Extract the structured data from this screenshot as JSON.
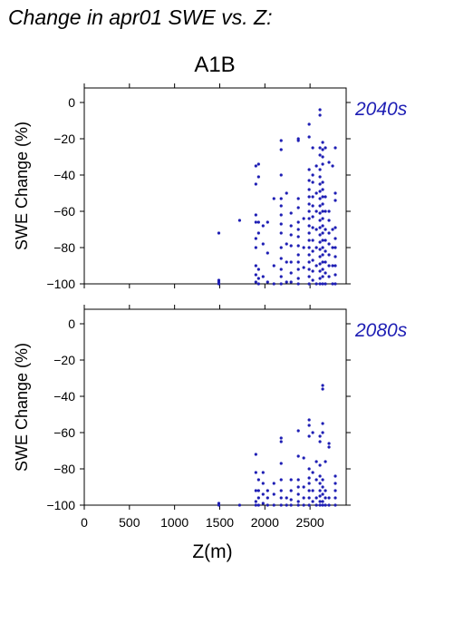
{
  "figure": {
    "title": "Change in apr01 SWE vs. Z:",
    "scenario": "A1B"
  },
  "colors": {
    "points": "#1e1eb4",
    "label": "#1e1eb4",
    "axis": "#000000"
  },
  "chart_data": [
    {
      "type": "scatter",
      "label": "2040s",
      "ylabel": "SWE Change (%)",
      "xlabel": "",
      "xlim": [
        0,
        2900
      ],
      "ylim": [
        -100,
        8
      ],
      "x_ticks": [
        0,
        500,
        1000,
        1500,
        2000,
        2500
      ],
      "y_ticks": [
        0,
        -20,
        -40,
        -60,
        -80,
        -100
      ],
      "x_tick_labels_visible": false,
      "points": [
        [
          1490,
          -72
        ],
        [
          1490,
          -98
        ],
        [
          1490,
          -99
        ],
        [
          1490,
          -100
        ],
        [
          1720,
          -65
        ],
        [
          1900,
          -35
        ],
        [
          1900,
          -45
        ],
        [
          1900,
          -62
        ],
        [
          1900,
          -66
        ],
        [
          1900,
          -75
        ],
        [
          1900,
          -80
        ],
        [
          1900,
          -90
        ],
        [
          1900,
          -95
        ],
        [
          1900,
          -99
        ],
        [
          1930,
          -34
        ],
        [
          1930,
          -41
        ],
        [
          1930,
          -66
        ],
        [
          1930,
          -72
        ],
        [
          1930,
          -92
        ],
        [
          1930,
          -97
        ],
        [
          1930,
          -100
        ],
        [
          1980,
          -68
        ],
        [
          1980,
          -78
        ],
        [
          1980,
          -96
        ],
        [
          2030,
          -66
        ],
        [
          2030,
          -83
        ],
        [
          2030,
          -99
        ],
        [
          2100,
          -53
        ],
        [
          2100,
          -90
        ],
        [
          2100,
          -100
        ],
        [
          2180,
          -21
        ],
        [
          2180,
          -26
        ],
        [
          2180,
          -40
        ],
        [
          2180,
          -53
        ],
        [
          2180,
          -57
        ],
        [
          2180,
          -62
        ],
        [
          2180,
          -67
        ],
        [
          2180,
          -72
        ],
        [
          2180,
          -80
        ],
        [
          2180,
          -86
        ],
        [
          2180,
          -92
        ],
        [
          2180,
          -96
        ],
        [
          2180,
          -100
        ],
        [
          2240,
          -50
        ],
        [
          2240,
          -78
        ],
        [
          2240,
          -88
        ],
        [
          2240,
          -99
        ],
        [
          2290,
          -61
        ],
        [
          2290,
          -68
        ],
        [
          2290,
          -73
        ],
        [
          2290,
          -79
        ],
        [
          2290,
          -88
        ],
        [
          2290,
          -94
        ],
        [
          2290,
          -99
        ],
        [
          2370,
          -20
        ],
        [
          2370,
          -21
        ],
        [
          2370,
          -53
        ],
        [
          2370,
          -58
        ],
        [
          2370,
          -66
        ],
        [
          2370,
          -70
        ],
        [
          2370,
          -74
        ],
        [
          2370,
          -79
        ],
        [
          2370,
          -84
        ],
        [
          2370,
          -88
        ],
        [
          2370,
          -92
        ],
        [
          2370,
          -97
        ],
        [
          2370,
          -100
        ],
        [
          2430,
          -64
        ],
        [
          2430,
          -80
        ],
        [
          2430,
          -91
        ],
        [
          2490,
          -12
        ],
        [
          2490,
          -19
        ],
        [
          2490,
          -37
        ],
        [
          2490,
          -43
        ],
        [
          2490,
          -48
        ],
        [
          2490,
          -52
        ],
        [
          2490,
          -56
        ],
        [
          2490,
          -60
        ],
        [
          2490,
          -64
        ],
        [
          2490,
          -68
        ],
        [
          2490,
          -72
        ],
        [
          2490,
          -76
        ],
        [
          2490,
          -80
        ],
        [
          2490,
          -84
        ],
        [
          2490,
          -88
        ],
        [
          2490,
          -92
        ],
        [
          2490,
          -96
        ],
        [
          2490,
          -100
        ],
        [
          2530,
          -25
        ],
        [
          2530,
          -40
        ],
        [
          2530,
          -44
        ],
        [
          2530,
          -52
        ],
        [
          2530,
          -57
        ],
        [
          2530,
          -63
        ],
        [
          2530,
          -69
        ],
        [
          2530,
          -76
        ],
        [
          2530,
          -82
        ],
        [
          2530,
          -87
        ],
        [
          2530,
          -93
        ],
        [
          2530,
          -98
        ],
        [
          2570,
          -35
        ],
        [
          2570,
          -50
        ],
        [
          2570,
          -60
        ],
        [
          2570,
          -70
        ],
        [
          2570,
          -80
        ],
        [
          2570,
          -90
        ],
        [
          2570,
          -100
        ],
        [
          2610,
          -4
        ],
        [
          2610,
          -7
        ],
        [
          2610,
          -25
        ],
        [
          2610,
          -29
        ],
        [
          2610,
          -37
        ],
        [
          2610,
          -41
        ],
        [
          2610,
          -45
        ],
        [
          2610,
          -49
        ],
        [
          2610,
          -53
        ],
        [
          2610,
          -57
        ],
        [
          2610,
          -61
        ],
        [
          2610,
          -65
        ],
        [
          2610,
          -69
        ],
        [
          2610,
          -73
        ],
        [
          2610,
          -77
        ],
        [
          2610,
          -81
        ],
        [
          2610,
          -85
        ],
        [
          2610,
          -89
        ],
        [
          2610,
          -93
        ],
        [
          2610,
          -97
        ],
        [
          2610,
          -100
        ],
        [
          2640,
          -22
        ],
        [
          2640,
          -26
        ],
        [
          2640,
          -30
        ],
        [
          2640,
          -34
        ],
        [
          2640,
          -44
        ],
        [
          2640,
          -48
        ],
        [
          2640,
          -52
        ],
        [
          2640,
          -56
        ],
        [
          2640,
          -60
        ],
        [
          2640,
          -64
        ],
        [
          2640,
          -68
        ],
        [
          2640,
          -72
        ],
        [
          2640,
          -76
        ],
        [
          2640,
          -80
        ],
        [
          2640,
          -84
        ],
        [
          2640,
          -88
        ],
        [
          2640,
          -92
        ],
        [
          2640,
          -96
        ],
        [
          2640,
          -100
        ],
        [
          2670,
          -25
        ],
        [
          2670,
          -52
        ],
        [
          2670,
          -60
        ],
        [
          2670,
          -70
        ],
        [
          2670,
          -76
        ],
        [
          2670,
          -82
        ],
        [
          2670,
          -88
        ],
        [
          2670,
          -94
        ],
        [
          2670,
          -100
        ],
        [
          2710,
          -33
        ],
        [
          2710,
          -60
        ],
        [
          2710,
          -65
        ],
        [
          2710,
          -72
        ],
        [
          2710,
          -78
        ],
        [
          2710,
          -84
        ],
        [
          2710,
          -90
        ],
        [
          2710,
          -96
        ],
        [
          2750,
          -35
        ],
        [
          2750,
          -70
        ],
        [
          2750,
          -80
        ],
        [
          2750,
          -90
        ],
        [
          2750,
          -100
        ],
        [
          2780,
          -25
        ],
        [
          2780,
          -50
        ],
        [
          2780,
          -54
        ],
        [
          2780,
          -69
        ],
        [
          2780,
          -75
        ],
        [
          2780,
          -80
        ],
        [
          2780,
          -85
        ],
        [
          2780,
          -90
        ],
        [
          2780,
          -95
        ],
        [
          2780,
          -100
        ]
      ]
    },
    {
      "type": "scatter",
      "label": "2080s",
      "ylabel": "SWE Change (%)",
      "xlabel": "Z(m)",
      "xlim": [
        0,
        2900
      ],
      "ylim": [
        -100,
        8
      ],
      "x_ticks": [
        0,
        500,
        1000,
        1500,
        2000,
        2500
      ],
      "y_ticks": [
        0,
        -20,
        -40,
        -60,
        -80,
        -100
      ],
      "x_tick_labels_visible": true,
      "points": [
        [
          1490,
          -99
        ],
        [
          1490,
          -100
        ],
        [
          1720,
          -100
        ],
        [
          1900,
          -72
        ],
        [
          1900,
          -82
        ],
        [
          1900,
          -92
        ],
        [
          1900,
          -98
        ],
        [
          1900,
          -100
        ],
        [
          1930,
          -86
        ],
        [
          1930,
          -92
        ],
        [
          1930,
          -96
        ],
        [
          1930,
          -100
        ],
        [
          1980,
          -82
        ],
        [
          1980,
          -88
        ],
        [
          1980,
          -94
        ],
        [
          1980,
          -99
        ],
        [
          2030,
          -92
        ],
        [
          2030,
          -96
        ],
        [
          2030,
          -100
        ],
        [
          2100,
          -88
        ],
        [
          2100,
          -94
        ],
        [
          2100,
          -100
        ],
        [
          2180,
          -63
        ],
        [
          2180,
          -65
        ],
        [
          2180,
          -77
        ],
        [
          2180,
          -86
        ],
        [
          2180,
          -92
        ],
        [
          2180,
          -96
        ],
        [
          2180,
          -100
        ],
        [
          2240,
          -96
        ],
        [
          2240,
          -100
        ],
        [
          2290,
          -86
        ],
        [
          2290,
          -92
        ],
        [
          2290,
          -97
        ],
        [
          2290,
          -100
        ],
        [
          2370,
          -59
        ],
        [
          2370,
          -73
        ],
        [
          2370,
          -86
        ],
        [
          2370,
          -90
        ],
        [
          2370,
          -94
        ],
        [
          2370,
          -98
        ],
        [
          2370,
          -100
        ],
        [
          2430,
          -74
        ],
        [
          2430,
          -90
        ],
        [
          2430,
          -96
        ],
        [
          2430,
          -100
        ],
        [
          2490,
          -53
        ],
        [
          2490,
          -56
        ],
        [
          2490,
          -62
        ],
        [
          2490,
          -80
        ],
        [
          2490,
          -85
        ],
        [
          2490,
          -88
        ],
        [
          2490,
          -92
        ],
        [
          2490,
          -96
        ],
        [
          2490,
          -100
        ],
        [
          2530,
          -60
        ],
        [
          2530,
          -82
        ],
        [
          2530,
          -92
        ],
        [
          2530,
          -98
        ],
        [
          2570,
          -76
        ],
        [
          2570,
          -86
        ],
        [
          2570,
          -96
        ],
        [
          2570,
          -100
        ],
        [
          2610,
          -62
        ],
        [
          2610,
          -65
        ],
        [
          2610,
          -78
        ],
        [
          2610,
          -84
        ],
        [
          2610,
          -88
        ],
        [
          2610,
          -92
        ],
        [
          2610,
          -95
        ],
        [
          2610,
          -98
        ],
        [
          2610,
          -100
        ],
        [
          2640,
          -34
        ],
        [
          2640,
          -36
        ],
        [
          2640,
          -55
        ],
        [
          2640,
          -60
        ],
        [
          2640,
          -86
        ],
        [
          2640,
          -90
        ],
        [
          2640,
          -94
        ],
        [
          2640,
          -98
        ],
        [
          2640,
          -100
        ],
        [
          2670,
          -76
        ],
        [
          2670,
          -92
        ],
        [
          2670,
          -96
        ],
        [
          2670,
          -100
        ],
        [
          2710,
          -66
        ],
        [
          2710,
          -68
        ],
        [
          2710,
          -96
        ],
        [
          2710,
          -100
        ],
        [
          2780,
          -84
        ],
        [
          2780,
          -88
        ],
        [
          2780,
          -92
        ],
        [
          2780,
          -96
        ],
        [
          2780,
          -100
        ]
      ]
    }
  ]
}
